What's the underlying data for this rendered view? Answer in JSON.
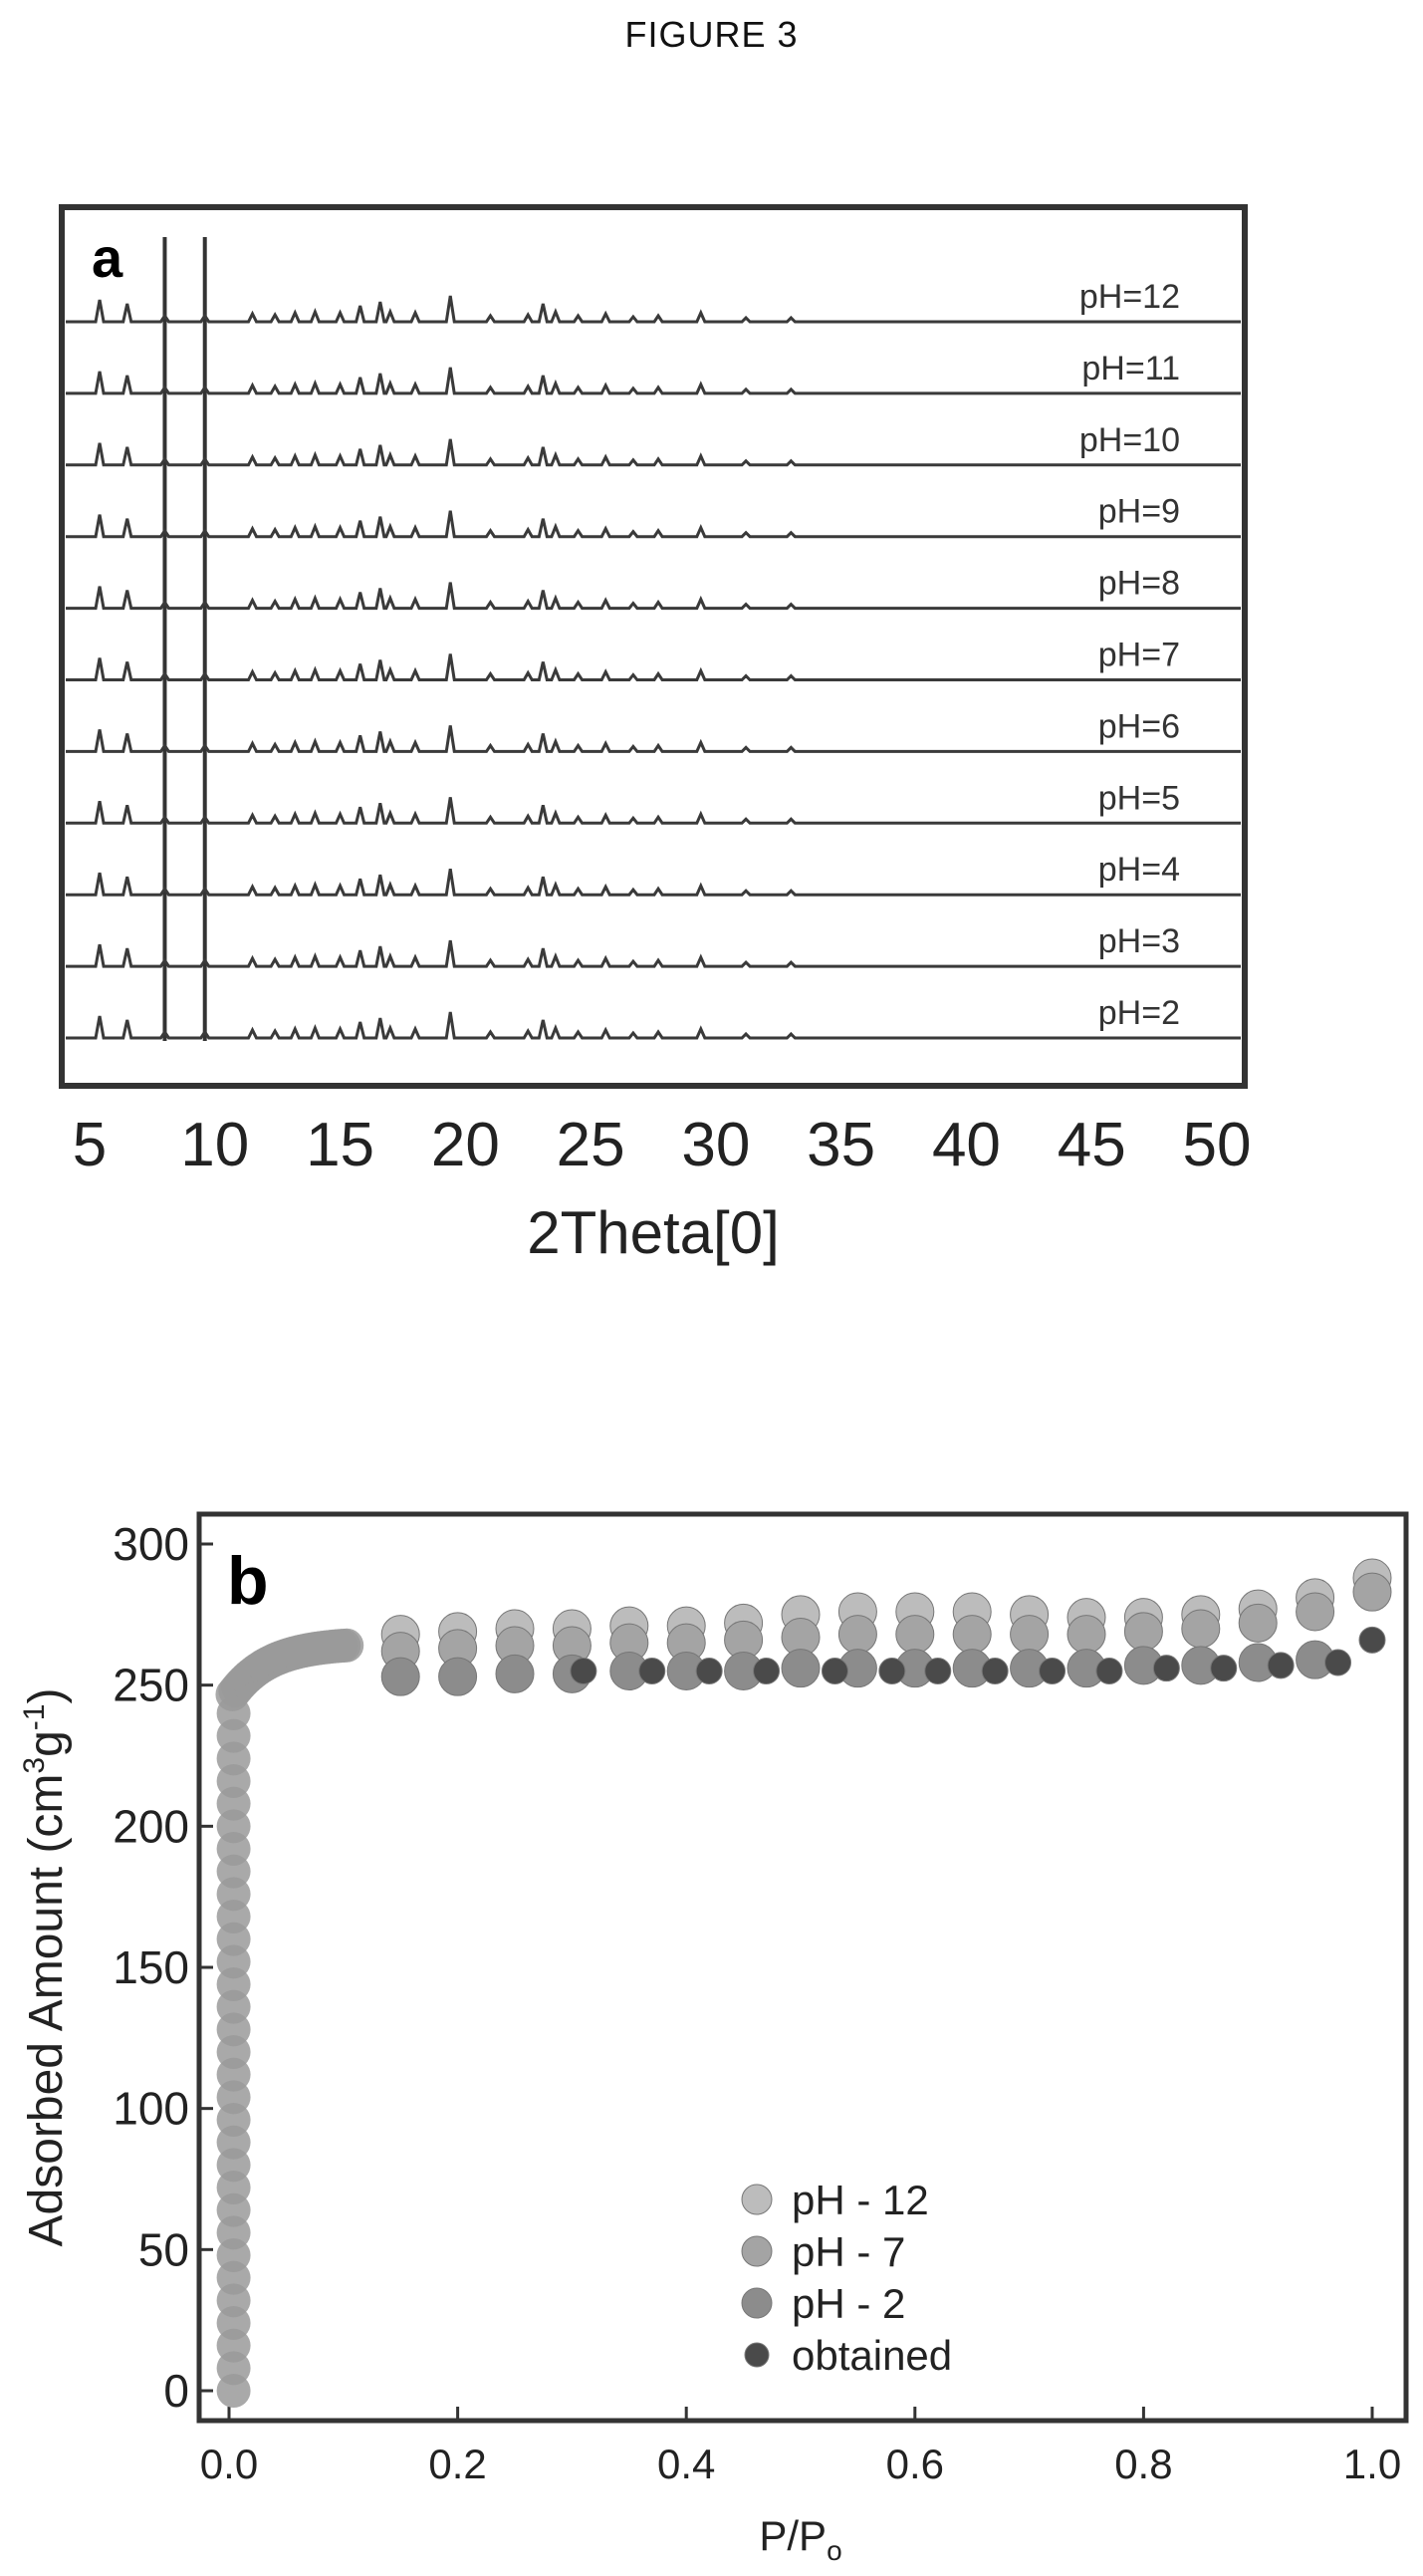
{
  "figure_title": "FIGURE 3",
  "chart_data": [
    {
      "type": "line",
      "panel_label": "a",
      "xlabel": "2Theta[0]",
      "ylabel": "",
      "xlim": [
        5,
        50
      ],
      "xticks": [
        5,
        10,
        15,
        20,
        25,
        30,
        35,
        40,
        45,
        50
      ],
      "stacked": true,
      "grid": false,
      "series": [
        {
          "name": "pH=12"
        },
        {
          "name": "pH=11"
        },
        {
          "name": "pH=10"
        },
        {
          "name": "pH=9"
        },
        {
          "name": "pH=8"
        },
        {
          "name": "pH=7"
        },
        {
          "name": "pH=6"
        },
        {
          "name": "pH=5"
        },
        {
          "name": "pH=4"
        },
        {
          "name": "pH=3"
        },
        {
          "name": "pH=2"
        }
      ],
      "peaks_2theta": [
        5.4,
        6.5,
        8.0,
        9.6,
        11.5,
        12.4,
        13.2,
        14.0,
        15.0,
        15.8,
        16.6,
        17.0,
        18.0,
        19.4,
        21.0,
        22.5,
        23.1,
        23.6,
        24.5,
        25.6,
        26.7,
        27.7,
        29.4,
        31.2,
        33.0
      ]
    },
    {
      "type": "scatter",
      "panel_label": "b",
      "xlabel": "P/Po",
      "ylabel": "Adsorbed Amount (cm3g-1)",
      "ylabel_parts": {
        "pre": "Adsorbed Amount (cm",
        "sup1": "3",
        "mid": "g",
        "sup2": "-1",
        "post": ")"
      },
      "xlabel_parts": {
        "main": "P/P",
        "sub": "o"
      },
      "xlim": [
        0.0,
        1.0
      ],
      "ylim": [
        0,
        300
      ],
      "xticks": [
        "0.0",
        "0.2",
        "0.4",
        "0.6",
        "0.8",
        "1.0"
      ],
      "yticks": [
        "0",
        "50",
        "100",
        "150",
        "200",
        "250",
        "300"
      ],
      "legend_position": "center",
      "grid": false,
      "series": [
        {
          "name": "pH - 12",
          "color": "#bcbcbc",
          "x": [
            0.15,
            0.2,
            0.25,
            0.3,
            0.35,
            0.4,
            0.45,
            0.5,
            0.55,
            0.6,
            0.65,
            0.7,
            0.75,
            0.8,
            0.85,
            0.9,
            0.95,
            1.0
          ],
          "y": [
            268,
            269,
            270,
            270,
            271,
            271,
            272,
            275,
            276,
            276,
            276,
            275,
            274,
            274,
            275,
            277,
            281,
            288
          ]
        },
        {
          "name": "pH - 7",
          "color": "#a4a4a4",
          "x": [
            0.15,
            0.2,
            0.25,
            0.3,
            0.35,
            0.4,
            0.45,
            0.5,
            0.55,
            0.6,
            0.65,
            0.7,
            0.75,
            0.8,
            0.85,
            0.9,
            0.95,
            1.0
          ],
          "y": [
            262,
            263,
            264,
            264,
            265,
            265,
            266,
            267,
            268,
            268,
            268,
            268,
            268,
            269,
            270,
            272,
            276,
            283
          ]
        },
        {
          "name": "pH - 2",
          "color": "#8c8c8c",
          "x": [
            0.15,
            0.2,
            0.25,
            0.3,
            0.35,
            0.4,
            0.45,
            0.5,
            0.55,
            0.6,
            0.65,
            0.7,
            0.75,
            0.8,
            0.85,
            0.9,
            0.95
          ],
          "y": [
            253,
            253,
            254,
            254,
            255,
            255,
            255,
            256,
            256,
            256,
            256,
            256,
            256,
            257,
            257,
            258,
            259
          ]
        },
        {
          "name": "obtained",
          "color": "#4a4a4a",
          "x": [
            0.31,
            0.37,
            0.42,
            0.47,
            0.53,
            0.58,
            0.62,
            0.67,
            0.72,
            0.77,
            0.82,
            0.87,
            0.92,
            0.97,
            1.0
          ],
          "y": [
            255,
            255,
            255,
            255,
            255,
            255,
            255,
            255,
            255,
            255,
            256,
            256,
            257,
            258,
            266
          ]
        }
      ]
    }
  ]
}
